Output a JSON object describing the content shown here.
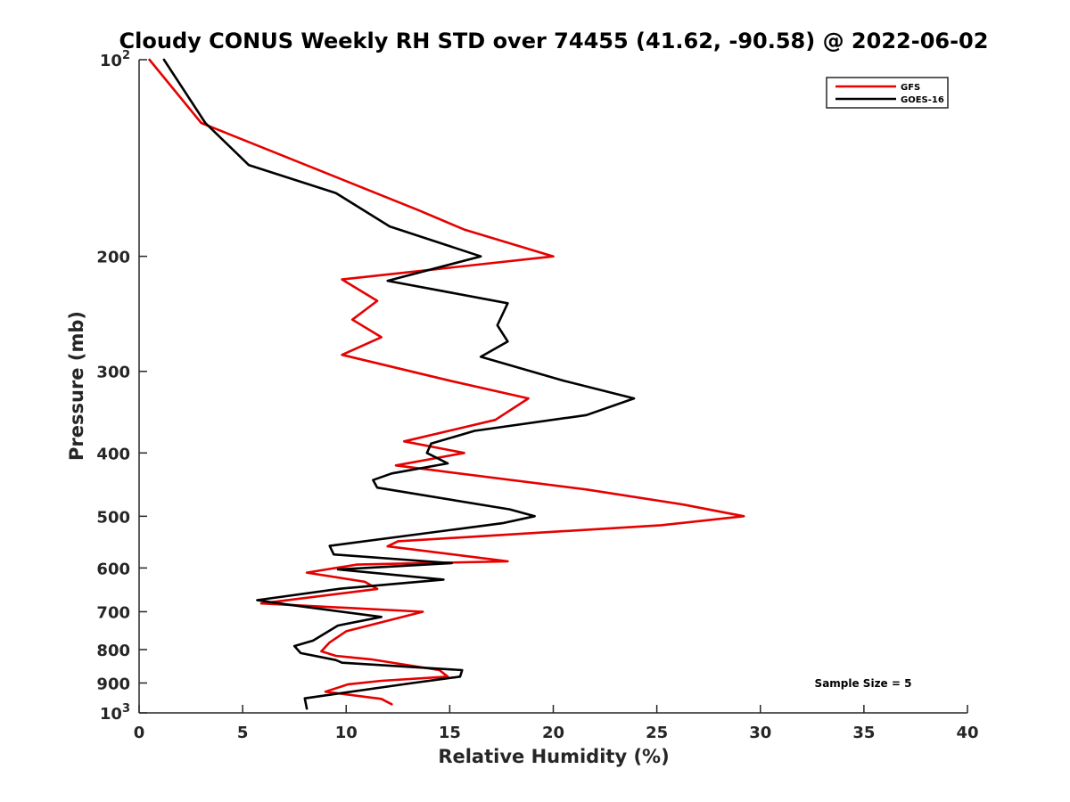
{
  "chart_data": {
    "type": "line",
    "title": "Cloudy CONUS Weekly RH STD over 74455 (41.62, -90.58) @ 2022-06-02",
    "xlabel": "Relative Humidity (%)",
    "ylabel": "Pressure (mb)",
    "xlim": [
      0,
      40
    ],
    "ylim": [
      100,
      1000
    ],
    "y_scale": "log",
    "y_reversed": true,
    "grid": false,
    "legend_position": "top-right",
    "x_ticks": [
      "0",
      "5",
      "10",
      "15",
      "20",
      "25",
      "30",
      "35",
      "40"
    ],
    "y_ticks": [
      {
        "value": 100,
        "base": "10",
        "exp": "2",
        "label": ""
      },
      {
        "value": 200,
        "label": "200"
      },
      {
        "value": 300,
        "label": "300"
      },
      {
        "value": 400,
        "label": "400"
      },
      {
        "value": 500,
        "label": "500"
      },
      {
        "value": 600,
        "label": "600"
      },
      {
        "value": 700,
        "label": "700"
      },
      {
        "value": 800,
        "label": "800"
      },
      {
        "value": 900,
        "label": "900"
      },
      {
        "value": 1000,
        "base": "10",
        "exp": "3",
        "label": ""
      }
    ],
    "annotation": "Sample Size = 5",
    "series": [
      {
        "name": "GFS",
        "color": "#e60000",
        "points": [
          [
            0.5,
            100
          ],
          [
            3.0,
            125
          ],
          [
            13.5,
            170
          ],
          [
            15.7,
            182
          ],
          [
            20.0,
            200
          ],
          [
            9.8,
            217
          ],
          [
            11.5,
            234
          ],
          [
            10.3,
            250
          ],
          [
            11.7,
            266
          ],
          [
            9.8,
            283
          ],
          [
            15.0,
            310
          ],
          [
            18.8,
            330
          ],
          [
            17.2,
            356
          ],
          [
            12.8,
            384
          ],
          [
            15.7,
            400
          ],
          [
            12.4,
            418
          ],
          [
            14.2,
            425
          ],
          [
            21.6,
            455
          ],
          [
            26.3,
            480
          ],
          [
            29.2,
            500
          ],
          [
            25.2,
            516
          ],
          [
            12.5,
            546
          ],
          [
            12.0,
            556
          ],
          [
            17.8,
            586
          ],
          [
            10.5,
            593
          ],
          [
            8.1,
            610
          ],
          [
            10.9,
            630
          ],
          [
            11.5,
            646
          ],
          [
            5.9,
            680
          ],
          [
            13.7,
            700
          ],
          [
            10.0,
            750
          ],
          [
            9.2,
            780
          ],
          [
            8.8,
            805
          ],
          [
            9.5,
            818
          ],
          [
            11.2,
            828
          ],
          [
            14.5,
            860
          ],
          [
            14.9,
            880
          ],
          [
            11.7,
            893
          ],
          [
            10.1,
            904
          ],
          [
            9.0,
            928
          ],
          [
            11.7,
            952
          ],
          [
            12.2,
            970
          ]
        ]
      },
      {
        "name": "GOES-16",
        "color": "#000000",
        "points": [
          [
            1.2,
            100
          ],
          [
            3.2,
            125
          ],
          [
            5.3,
            145
          ],
          [
            9.5,
            160
          ],
          [
            12.1,
            180
          ],
          [
            16.5,
            200
          ],
          [
            12.0,
            218
          ],
          [
            17.8,
            236
          ],
          [
            17.3,
            255
          ],
          [
            17.8,
            270
          ],
          [
            16.5,
            285
          ],
          [
            20.5,
            310
          ],
          [
            23.9,
            330
          ],
          [
            21.6,
            350
          ],
          [
            16.2,
            370
          ],
          [
            14.1,
            387
          ],
          [
            13.9,
            400
          ],
          [
            14.9,
            415
          ],
          [
            12.2,
            430
          ],
          [
            11.3,
            440
          ],
          [
            11.5,
            452
          ],
          [
            17.9,
            488
          ],
          [
            19.1,
            500
          ],
          [
            17.6,
            512
          ],
          [
            9.2,
            555
          ],
          [
            9.4,
            572
          ],
          [
            15.1,
            590
          ],
          [
            9.6,
            603
          ],
          [
            14.7,
            625
          ],
          [
            9.8,
            645
          ],
          [
            5.7,
            672
          ],
          [
            7.1,
            682
          ],
          [
            11.7,
            713
          ],
          [
            9.6,
            735
          ],
          [
            8.4,
            775
          ],
          [
            7.5,
            790
          ],
          [
            7.8,
            810
          ],
          [
            9.5,
            830
          ],
          [
            9.8,
            838
          ],
          [
            15.6,
            860
          ],
          [
            15.5,
            880
          ],
          [
            13.2,
            900
          ],
          [
            8.0,
            950
          ],
          [
            8.1,
            985
          ]
        ]
      }
    ]
  }
}
